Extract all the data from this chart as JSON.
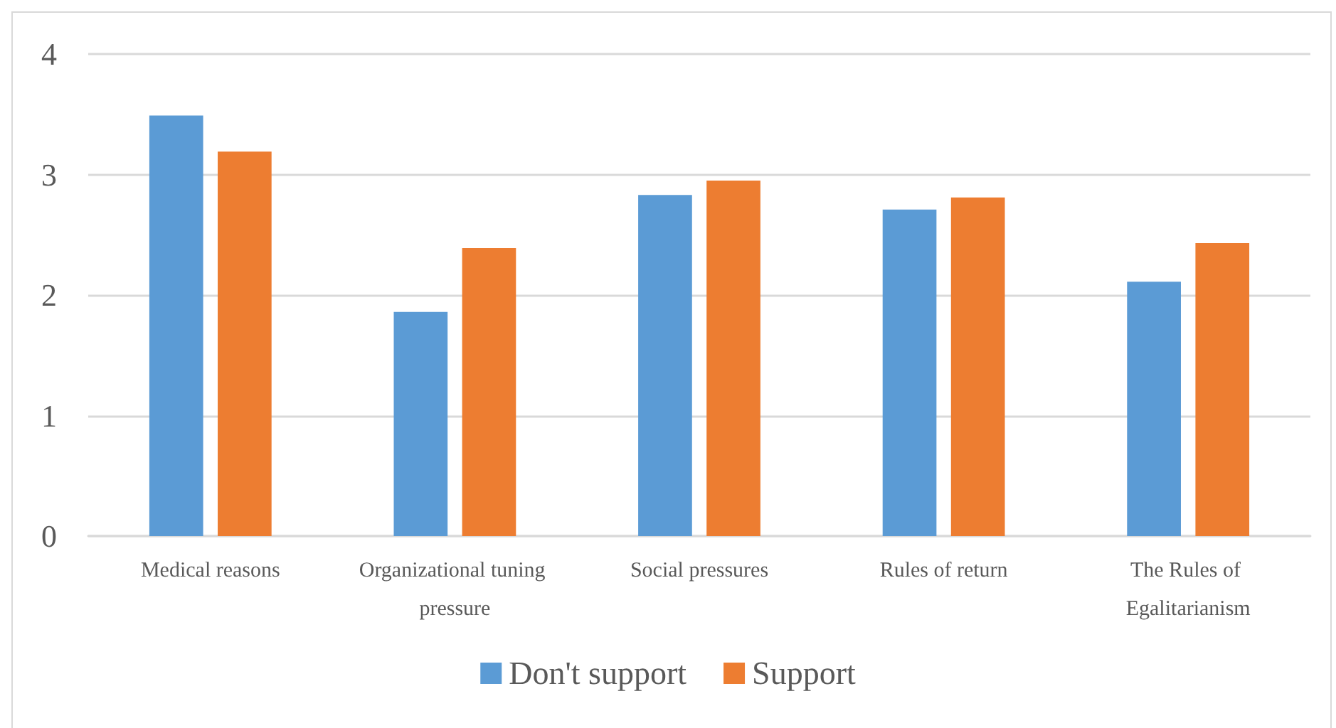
{
  "chart_data": {
    "type": "bar",
    "categories": [
      "Medical reasons",
      "Organizational tuning pressure",
      "Social pressures",
      "Rules of return",
      "The Rules of Egalitarianism"
    ],
    "series": [
      {
        "name": "Don't support",
        "color": "#5b9bd5",
        "values": [
          3.49,
          1.86,
          2.83,
          2.71,
          2.11
        ]
      },
      {
        "name": "Support",
        "color": "#ed7d31",
        "values": [
          3.19,
          2.39,
          2.95,
          2.81,
          2.43
        ]
      }
    ],
    "ylim": [
      0,
      4
    ],
    "yticks": [
      0,
      1,
      2,
      3,
      4
    ],
    "grid": true,
    "legend": "bottom"
  }
}
